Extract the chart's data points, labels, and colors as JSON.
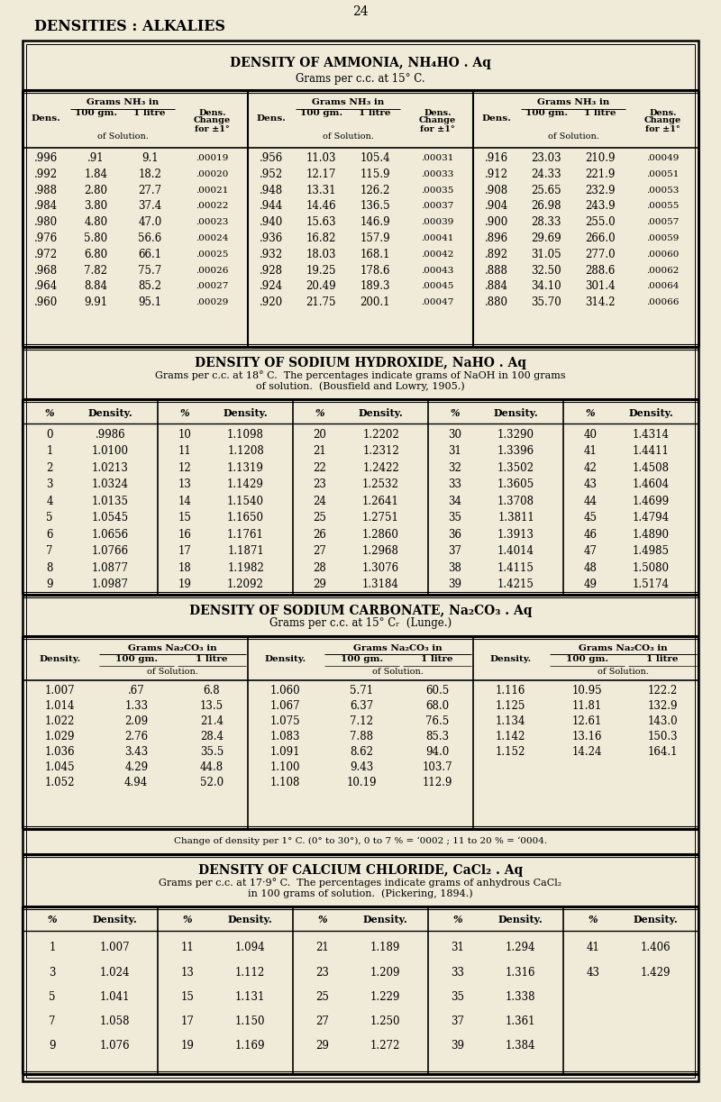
{
  "bg_color": "#f0ead8",
  "text_color": "#1a1a1a",
  "page_number": "24",
  "page_title": "DENSITIES : ALKALIES",
  "ammonia_title": "DENSITY OF AMMONIA, NH₄HO . Aq",
  "ammonia_subtitle": "Grams per c.c. at 15° C.",
  "ammonia_data": [
    [
      ".996",
      ".91",
      "9.1",
      ".00019",
      ".956",
      "11.03",
      "105.4",
      ".00031",
      ".916",
      "23.03",
      "210.9",
      ".00049"
    ],
    [
      ".992",
      "1.84",
      "18.2",
      ".00020",
      ".952",
      "12.17",
      "115.9",
      ".00033",
      ".912",
      "24.33",
      "221.9",
      ".00051"
    ],
    [
      ".988",
      "2.80",
      "27.7",
      ".00021",
      ".948",
      "13.31",
      "126.2",
      ".00035",
      ".908",
      "25.65",
      "232.9",
      ".00053"
    ],
    [
      ".984",
      "3.80",
      "37.4",
      ".00022",
      ".944",
      "14.46",
      "136.5",
      ".00037",
      ".904",
      "26.98",
      "243.9",
      ".00055"
    ],
    [
      ".980",
      "4.80",
      "47.0",
      ".00023",
      ".940",
      "15.63",
      "146.9",
      ".00039",
      ".900",
      "28.33",
      "255.0",
      ".00057"
    ],
    [
      ".976",
      "5.80",
      "56.6",
      ".00024",
      ".936",
      "16.82",
      "157.9",
      ".00041",
      ".896",
      "29.69",
      "266.0",
      ".00059"
    ],
    [
      ".972",
      "6.80",
      "66.1",
      ".00025",
      ".932",
      "18.03",
      "168.1",
      ".00042",
      ".892",
      "31.05",
      "277.0",
      ".00060"
    ],
    [
      ".968",
      "7.82",
      "75.7",
      ".00026",
      ".928",
      "19.25",
      "178.6",
      ".00043",
      ".888",
      "32.50",
      "288.6",
      ".00062"
    ],
    [
      ".964",
      "8.84",
      "85.2",
      ".00027",
      ".924",
      "20.49",
      "189.3",
      ".00045",
      ".884",
      "34.10",
      "301.4",
      ".00064"
    ],
    [
      ".960",
      "9.91",
      "95.1",
      ".00029",
      ".920",
      "21.75",
      "200.1",
      ".00047",
      ".880",
      "35.70",
      "314.2",
      ".00066"
    ]
  ],
  "naoh_title": "DENSITY OF SODIUM HYDROXIDE, NaHO . Aq",
  "naoh_subtitle1": "Grams per c.c. at 18° C.  The percentages indicate grams of NaOH in 100 grams",
  "naoh_subtitle2": "of solution.  (Bousfield and Lowry, 1905.)",
  "naoh_data": [
    [
      "0",
      ".9986",
      "10",
      "1.1098",
      "20",
      "1.2202",
      "30",
      "1.3290",
      "40",
      "1.4314"
    ],
    [
      "1",
      "1.0100",
      "11",
      "1.1208",
      "21",
      "1.2312",
      "31",
      "1.3396",
      "41",
      "1.4411"
    ],
    [
      "2",
      "1.0213",
      "12",
      "1.1319",
      "22",
      "1.2422",
      "32",
      "1.3502",
      "42",
      "1.4508"
    ],
    [
      "3",
      "1.0324",
      "13",
      "1.1429",
      "23",
      "1.2532",
      "33",
      "1.3605",
      "43",
      "1.4604"
    ],
    [
      "4",
      "1.0135",
      "14",
      "1.1540",
      "24",
      "1.2641",
      "34",
      "1.3708",
      "44",
      "1.4699"
    ],
    [
      "5",
      "1.0545",
      "15",
      "1.1650",
      "25",
      "1.2751",
      "35",
      "1.3811",
      "45",
      "1.4794"
    ],
    [
      "6",
      "1.0656",
      "16",
      "1.1761",
      "26",
      "1.2860",
      "36",
      "1.3913",
      "46",
      "1.4890"
    ],
    [
      "7",
      "1.0766",
      "17",
      "1.1871",
      "27",
      "1.2968",
      "37",
      "1.4014",
      "47",
      "1.4985"
    ],
    [
      "8",
      "1.0877",
      "18",
      "1.1982",
      "28",
      "1.3076",
      "38",
      "1.4115",
      "48",
      "1.5080"
    ],
    [
      "9",
      "1.0987",
      "19",
      "1.2092",
      "29",
      "1.3184",
      "39",
      "1.4215",
      "49",
      "1.5174"
    ]
  ],
  "na2co3_title": "DENSITY OF SODIUM CARBONATE, Na₂CO₃ . Aq",
  "na2co3_subtitle": "Grams per c.c. at 15° Cᵣ  (Lunge.)",
  "na2co3_data": [
    [
      "1.007",
      ".67",
      "6.8",
      "1.060",
      "5.71",
      "60.5",
      "1.116",
      "10.95",
      "122.2"
    ],
    [
      "1.014",
      "1.33",
      "13.5",
      "1.067",
      "6.37",
      "68.0",
      "1.125",
      "11.81",
      "132.9"
    ],
    [
      "1.022",
      "2.09",
      "21.4",
      "1.075",
      "7.12",
      "76.5",
      "1.134",
      "12.61",
      "143.0"
    ],
    [
      "1.029",
      "2.76",
      "28.4",
      "1.083",
      "7.88",
      "85.3",
      "1.142",
      "13.16",
      "150.3"
    ],
    [
      "1.036",
      "3.43",
      "35.5",
      "1.091",
      "8.62",
      "94.0",
      "1.152",
      "14.24",
      "164.1"
    ],
    [
      "1.045",
      "4.29",
      "44.8",
      "1.100",
      "9.43",
      "103.7",
      "",
      "",
      ""
    ],
    [
      "1.052",
      "4.94",
      "52.0",
      "1.108",
      "10.19",
      "112.9",
      "",
      "",
      ""
    ]
  ],
  "na2co3_footnote": "Change of density per 1° C. (0° to 30°), 0 to 7 % = ‘0002 ; 11 to 20 % = ‘0004.",
  "cacl2_title": "DENSITY OF CALCIUM CHLORIDE, CaCl₂ . Aq",
  "cacl2_subtitle1": "Grams per c.c. at 17·9° C.  The percentages indicate grams of anhydrous CaCl₂",
  "cacl2_subtitle2": "in 100 grams of solution.  (Pickering, 1894.)",
  "cacl2_data": [
    [
      "1",
      "1.007",
      "11",
      "1.094",
      "21",
      "1.189",
      "31",
      "1.294",
      "41",
      "1.406"
    ],
    [
      "3",
      "1.024",
      "13",
      "1.112",
      "23",
      "1.209",
      "33",
      "1.316",
      "43",
      "1.429"
    ],
    [
      "5",
      "1.041",
      "15",
      "1.131",
      "25",
      "1.229",
      "35",
      "1.338",
      "",
      ""
    ],
    [
      "7",
      "1.058",
      "17",
      "1.150",
      "27",
      "1.250",
      "37",
      "1.361",
      "",
      ""
    ],
    [
      "9",
      "1.076",
      "19",
      "1.169",
      "29",
      "1.272",
      "39",
      "1.384",
      "",
      ""
    ]
  ]
}
